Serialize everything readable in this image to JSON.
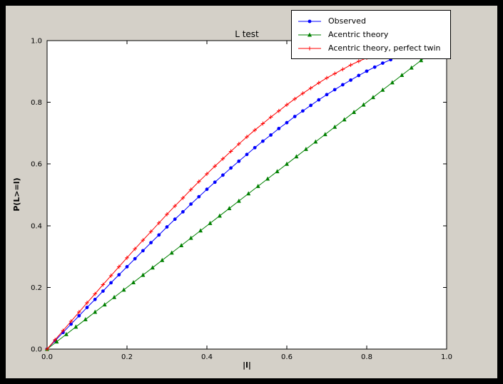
{
  "window": {
    "background": "#000000",
    "figure_background": "#d4d0c8",
    "axes_background": "#ffffff"
  },
  "chart_data": {
    "type": "line",
    "title": "L test",
    "xlabel": "|l|",
    "ylabel": "P(L>=l)",
    "xlim": [
      0,
      1
    ],
    "ylim": [
      0,
      1
    ],
    "xticks": [
      0,
      0.2,
      0.4,
      0.6,
      0.8,
      1.0
    ],
    "yticks": [
      0,
      0.2,
      0.4,
      0.6,
      0.8,
      1.0
    ],
    "grid": false,
    "legend_position": "upper right, overlapping top of axes",
    "series": [
      {
        "name": "Observed",
        "color": "#0000ff",
        "marker": "circle",
        "x": [
          0,
          0.02,
          0.04,
          0.06,
          0.08,
          0.1,
          0.12,
          0.14,
          0.16,
          0.18,
          0.2,
          0.22,
          0.24,
          0.26,
          0.28,
          0.3,
          0.32,
          0.34,
          0.36,
          0.38,
          0.4,
          0.42,
          0.44,
          0.46,
          0.48,
          0.5,
          0.52,
          0.54,
          0.56,
          0.58,
          0.6,
          0.62,
          0.64,
          0.66,
          0.68,
          0.7,
          0.72,
          0.74,
          0.76,
          0.78,
          0.8,
          0.82,
          0.84,
          0.86
        ],
        "y": [
          0,
          0.027,
          0.054,
          0.081,
          0.108,
          0.135,
          0.161,
          0.188,
          0.215,
          0.241,
          0.267,
          0.293,
          0.319,
          0.345,
          0.37,
          0.396,
          0.421,
          0.445,
          0.47,
          0.494,
          0.518,
          0.541,
          0.564,
          0.587,
          0.609,
          0.631,
          0.653,
          0.674,
          0.694,
          0.715,
          0.734,
          0.754,
          0.772,
          0.79,
          0.808,
          0.825,
          0.841,
          0.857,
          0.872,
          0.887,
          0.901,
          0.914,
          0.927,
          0.938
        ]
      },
      {
        "name": "Acentric theory",
        "color": "#008000",
        "marker": "triangle",
        "x": [
          0,
          0.024,
          0.048,
          0.072,
          0.096,
          0.12,
          0.144,
          0.168,
          0.192,
          0.216,
          0.24,
          0.264,
          0.288,
          0.312,
          0.336,
          0.36,
          0.384,
          0.408,
          0.432,
          0.456,
          0.48,
          0.504,
          0.528,
          0.552,
          0.576,
          0.6,
          0.624,
          0.648,
          0.672,
          0.696,
          0.72,
          0.744,
          0.768,
          0.792,
          0.816,
          0.84,
          0.864,
          0.888,
          0.912,
          0.936,
          0.96
        ],
        "y": [
          0,
          0.024,
          0.048,
          0.072,
          0.096,
          0.12,
          0.144,
          0.168,
          0.192,
          0.216,
          0.24,
          0.264,
          0.288,
          0.312,
          0.336,
          0.36,
          0.384,
          0.408,
          0.432,
          0.456,
          0.48,
          0.504,
          0.528,
          0.552,
          0.576,
          0.6,
          0.624,
          0.648,
          0.672,
          0.696,
          0.72,
          0.744,
          0.768,
          0.792,
          0.816,
          0.84,
          0.864,
          0.888,
          0.912,
          0.936,
          0.96
        ]
      },
      {
        "name": "Acentric theory, perfect twin",
        "color": "#ff0000",
        "marker": "plus",
        "x": [
          0,
          0.02,
          0.04,
          0.06,
          0.08,
          0.1,
          0.12,
          0.14,
          0.16,
          0.18,
          0.2,
          0.22,
          0.24,
          0.26,
          0.28,
          0.3,
          0.32,
          0.34,
          0.36,
          0.38,
          0.4,
          0.42,
          0.44,
          0.46,
          0.48,
          0.5,
          0.52,
          0.54,
          0.56,
          0.58,
          0.6,
          0.62,
          0.64,
          0.66,
          0.68,
          0.7,
          0.72,
          0.74,
          0.76,
          0.78,
          0.8,
          0.82,
          0.84
        ],
        "y": [
          0,
          0.03,
          0.06,
          0.09,
          0.12,
          0.15,
          0.179,
          0.209,
          0.238,
          0.267,
          0.296,
          0.325,
          0.353,
          0.381,
          0.409,
          0.437,
          0.464,
          0.49,
          0.517,
          0.543,
          0.568,
          0.593,
          0.617,
          0.641,
          0.665,
          0.688,
          0.71,
          0.731,
          0.752,
          0.772,
          0.792,
          0.811,
          0.829,
          0.846,
          0.863,
          0.879,
          0.893,
          0.907,
          0.921,
          0.933,
          0.944,
          0.954,
          0.964
        ]
      }
    ]
  }
}
